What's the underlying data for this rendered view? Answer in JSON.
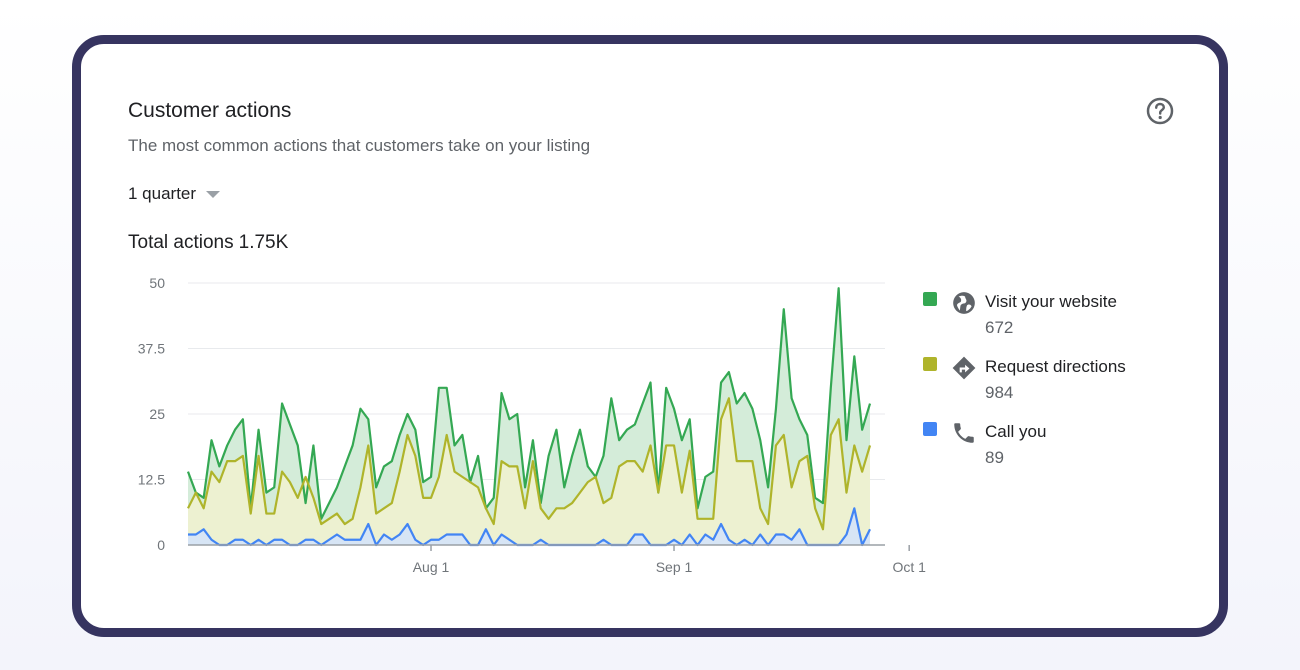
{
  "card": {
    "title": "Customer actions",
    "subtitle": "The most common actions that customers take on your listing",
    "period_label": "1 quarter",
    "total_label": "Total actions",
    "total_value": "1.75K"
  },
  "legend": [
    {
      "label": "Visit your website",
      "value": "672",
      "color": "#34a853",
      "icon": "globe-icon"
    },
    {
      "label": "Request directions",
      "value": "984",
      "color": "#afb42b",
      "icon": "directions-icon"
    },
    {
      "label": "Call you",
      "value": "89",
      "color": "#4285f4",
      "icon": "phone-icon"
    }
  ],
  "chart_data": {
    "type": "area",
    "title": "",
    "xlabel": "",
    "ylabel": "",
    "x_ticks": [
      "Aug 1",
      "Sep 1",
      "Oct 1"
    ],
    "x_tick_day_index": [
      31,
      62,
      92
    ],
    "y_ticks": [
      "0",
      "12.5",
      "25",
      "37.5",
      "50"
    ],
    "ylim": [
      0,
      50
    ],
    "grid": true,
    "legend_position": "right",
    "series": [
      {
        "name": "Visit your website",
        "color": "#34a853",
        "fill": "#d4ecd9",
        "values": [
          14,
          10,
          9,
          20,
          15,
          19,
          22,
          24,
          7,
          22,
          10,
          11,
          27,
          23,
          19,
          8,
          19,
          5,
          8,
          11,
          15,
          19,
          26,
          24,
          11,
          15,
          16,
          21,
          25,
          22,
          12,
          13,
          30,
          30,
          19,
          21,
          12,
          17,
          7,
          9,
          29,
          24,
          25,
          11,
          20,
          8,
          17,
          22,
          11,
          17,
          22,
          15,
          13,
          17,
          28,
          20,
          22,
          23,
          27,
          31,
          10,
          30,
          26,
          20,
          24,
          7,
          13,
          14,
          31,
          33,
          27,
          29,
          26,
          20,
          11,
          26,
          45,
          28,
          24,
          21,
          9,
          8,
          30,
          49,
          20,
          36,
          22,
          27
        ]
      },
      {
        "name": "Request directions",
        "color": "#afb42b",
        "fill": "#f1f2cf",
        "values": [
          7,
          10,
          7,
          14,
          12,
          16,
          16,
          17,
          6,
          17,
          6,
          6,
          14,
          12,
          9,
          13,
          9,
          4,
          5,
          6,
          4,
          5,
          11,
          19,
          6,
          7,
          8,
          14,
          21,
          17,
          9,
          9,
          13,
          21,
          14,
          13,
          12,
          11,
          7,
          4,
          16,
          15,
          15,
          7,
          16,
          7,
          5,
          7,
          7,
          8,
          10,
          12,
          13,
          8,
          9,
          15,
          16,
          16,
          14,
          19,
          10,
          19,
          19,
          10,
          18,
          5,
          5,
          5,
          24,
          28,
          16,
          16,
          16,
          7,
          4,
          19,
          21,
          11,
          16,
          17,
          7,
          3,
          21,
          24,
          10,
          19,
          14,
          19
        ]
      },
      {
        "name": "Call you",
        "color": "#4285f4",
        "fill": "#d2e3fc",
        "values": [
          2,
          2,
          3,
          1,
          0,
          0,
          1,
          1,
          0,
          1,
          0,
          1,
          1,
          0,
          0,
          1,
          1,
          0,
          1,
          2,
          1,
          1,
          1,
          4,
          0,
          2,
          1,
          2,
          4,
          1,
          0,
          1,
          1,
          2,
          2,
          2,
          0,
          0,
          3,
          0,
          2,
          1,
          0,
          0,
          0,
          1,
          0,
          0,
          0,
          0,
          0,
          0,
          0,
          1,
          0,
          0,
          0,
          2,
          2,
          0,
          0,
          0,
          1,
          0,
          2,
          0,
          2,
          1,
          4,
          1,
          0,
          1,
          0,
          2,
          0,
          2,
          2,
          1,
          3,
          0,
          0,
          0,
          0,
          0,
          2,
          7,
          0,
          3
        ]
      }
    ]
  }
}
